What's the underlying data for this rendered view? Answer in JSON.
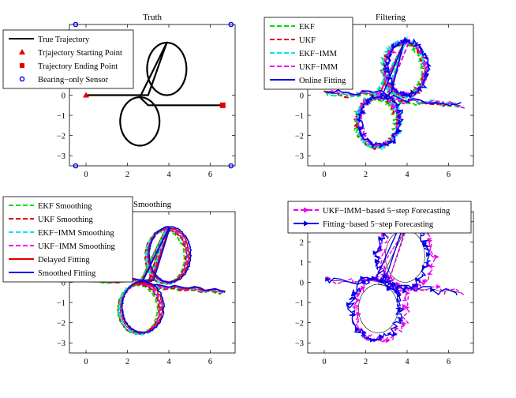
{
  "chart_data": [
    {
      "type": "line",
      "title": "Truth",
      "xlim": [
        -0.8,
        7.2
      ],
      "ylim": [
        -3.5,
        3.5
      ],
      "xticks": [
        0,
        2,
        4,
        6
      ],
      "yticks": [
        -3,
        -2,
        -1,
        0
      ],
      "grid": false,
      "legend_placement": "top-left",
      "legend": [
        "True Trajectory",
        "Trjajectory Starting Point",
        "Trajectory Ending Point",
        "Bearing−only Sensor"
      ],
      "series": [
        {
          "name": "True Trajectory",
          "color": "#000000",
          "x": [
            0,
            3,
            4,
            4.9,
            4,
            3,
            3,
            3,
            2,
            1.1,
            2,
            3,
            6.6
          ],
          "y": [
            0,
            0,
            1.2,
            2,
            2.8,
            2,
            0,
            -1,
            -2,
            -1.2,
            -0.4,
            -0.5,
            -0.5
          ]
        },
        {
          "name": "Trjajectory Starting Point",
          "marker": "triangle",
          "color": "#e00000",
          "x": [
            0
          ],
          "y": [
            0
          ]
        },
        {
          "name": "Trajectory Ending Point",
          "marker": "square",
          "color": "#e00000",
          "x": [
            6.6
          ],
          "y": [
            -0.5
          ]
        },
        {
          "name": "Bearing−only Sensor",
          "marker": "circle",
          "color": "#0000ee",
          "x": [
            -0.5,
            7,
            -0.5,
            7
          ],
          "y": [
            3.5,
            3.5,
            -3.5,
            -3.5
          ]
        }
      ]
    },
    {
      "type": "line",
      "title": "Filtering",
      "xlim": [
        -0.8,
        7.2
      ],
      "ylim": [
        -3.5,
        3.5
      ],
      "xticks": [
        0,
        2,
        4,
        6
      ],
      "yticks": [
        -3,
        -2,
        -1,
        0
      ],
      "grid": false,
      "legend_placement": "top-left",
      "legend": [
        "EKF",
        "UKF",
        "EKF−IMM",
        "UKF−IMM",
        "Online Fitting"
      ],
      "series": [
        {
          "name": "EKF",
          "color": "#00dd00",
          "dash": true
        },
        {
          "name": "UKF",
          "color": "#e00000",
          "dash": true
        },
        {
          "name": "EKF−IMM",
          "color": "#00e5ee",
          "dash": true
        },
        {
          "name": "UKF−IMM",
          "color": "#ee00ee",
          "dash": true
        },
        {
          "name": "Online Fitting",
          "color": "#0000ee",
          "dash": false
        }
      ]
    },
    {
      "type": "line",
      "title": "Smoothing",
      "xlim": [
        -0.8,
        7.2
      ],
      "ylim": [
        -3.5,
        3.5
      ],
      "xticks": [
        0,
        2,
        4,
        6
      ],
      "yticks": [
        -3,
        -2,
        -1,
        0
      ],
      "grid": false,
      "legend_placement": "top-left",
      "legend": [
        "EKF Smoothing",
        "UKF Smoothing",
        "EKF−IMM Smoothing",
        "UKF−IMM Smoothing",
        "Delayed Fitting",
        "Smoothed Fitting"
      ],
      "series": [
        {
          "name": "EKF Smoothing",
          "color": "#00dd00",
          "dash": true
        },
        {
          "name": "UKF Smoothing",
          "color": "#e00000",
          "dash": true
        },
        {
          "name": "EKF−IMM Smoothing",
          "color": "#00e5ee",
          "dash": true
        },
        {
          "name": "UKF−IMM Smoothing",
          "color": "#ee00ee",
          "dash": true
        },
        {
          "name": "Delayed Fitting",
          "color": "#e00000",
          "dash": false
        },
        {
          "name": "Smoothed Fitting",
          "color": "#0000ee",
          "dash": false
        }
      ]
    },
    {
      "type": "line",
      "title": "",
      "xlim": [
        -0.8,
        7.2
      ],
      "ylim": [
        -3.5,
        3.5
      ],
      "xticks": [
        0,
        2,
        4,
        6
      ],
      "yticks": [
        -3,
        -2,
        -1,
        0,
        1,
        2,
        3
      ],
      "grid": false,
      "legend_placement": "top-left",
      "legend": [
        "UKF−IMM−based 5−step Forecasting",
        "Fitting−based 5−step Forecasting"
      ],
      "series": [
        {
          "name": "UKF−IMM−based 5−step Forecasting",
          "color": "#ee00ee",
          "dash": true,
          "marker": "triangle-right"
        },
        {
          "name": "Fitting−based 5−step Forecasting",
          "color": "#0000ee",
          "dash": false,
          "marker": "triangle-right"
        }
      ]
    }
  ]
}
